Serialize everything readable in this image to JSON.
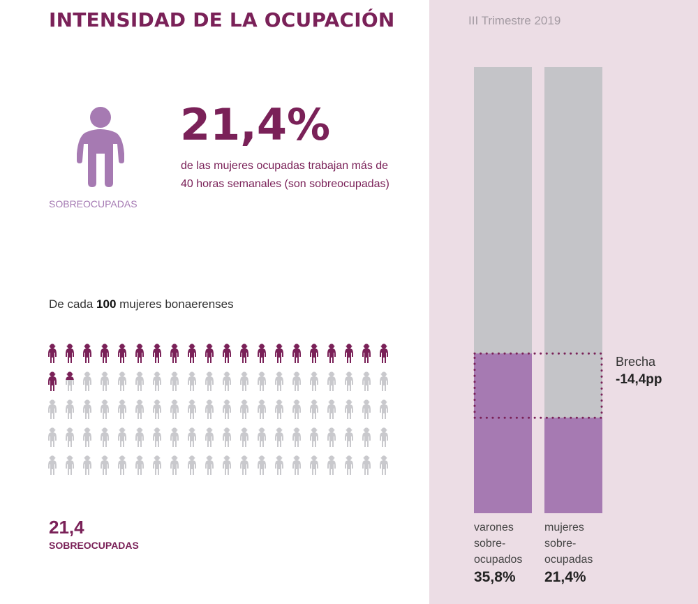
{
  "title": "INTENSIDAD DE LA OCUPACIÓN",
  "highlight": {
    "icon": "person-icon",
    "icon_label": "SOBREOCUPADAS",
    "value": "21,4%",
    "description": "de las mujeres ocupadas trabajan más de 40 horas semanales (son sobreocupadas)"
  },
  "pictogram": {
    "intro_pre": "De cada ",
    "intro_bold": "100",
    "intro_post": " mujeres bonaerenses",
    "total": 100,
    "filled": 21.4,
    "count_value": "21,4",
    "count_label": "SOBREOCUPADAS",
    "colors": {
      "filled": "#7a2158",
      "empty": "#c9c9cd"
    }
  },
  "panel": {
    "period": "III Trimestre 2019",
    "gap_label": "Brecha",
    "gap_value": "-14,4pp"
  },
  "colors": {
    "accent": "#7a2158",
    "bar_fill": "#a67ab2",
    "bar_rest": "#c4c4c8",
    "panel_bg": "#ecdde5"
  },
  "chart_data": {
    "type": "bar",
    "title": "III Trimestre 2019",
    "categories": [
      "varones sobre-ocupados",
      "mujeres sobre-ocupadas"
    ],
    "category_lines": [
      [
        "varones",
        "sobre-",
        "ocupados"
      ],
      [
        "mujeres",
        "sobre-",
        "ocupadas"
      ]
    ],
    "values": [
      35.8,
      21.4
    ],
    "value_labels": [
      "35,8%",
      "21,4%"
    ],
    "ylim": [
      0,
      100
    ],
    "stacked_remainder": true,
    "annotation": {
      "label": "Brecha",
      "value": "-14,4pp",
      "range": [
        21.4,
        35.8
      ]
    },
    "xlabel": "",
    "ylabel": "",
    "grid": false
  }
}
